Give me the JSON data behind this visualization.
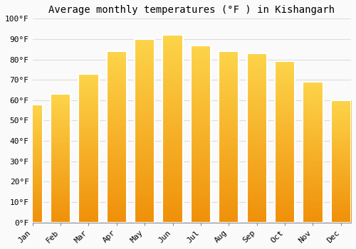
{
  "title": "Average monthly temperatures (°F ) in Kishangarh",
  "months": [
    "Jan",
    "Feb",
    "Mar",
    "Apr",
    "May",
    "Jun",
    "Jul",
    "Aug",
    "Sep",
    "Oct",
    "Nov",
    "Dec"
  ],
  "values": [
    58,
    63,
    73,
    84,
    90,
    92,
    87,
    84,
    83,
    79,
    69,
    60
  ],
  "bar_color_top": "#FDD44A",
  "bar_color_bottom": "#F0900A",
  "bar_edge_color": "#FFFFFF",
  "background_color": "#FAFAFA",
  "grid_color": "#DDDDDD",
  "ylim": [
    0,
    100
  ],
  "yticks": [
    0,
    10,
    20,
    30,
    40,
    50,
    60,
    70,
    80,
    90,
    100
  ],
  "ytick_labels": [
    "0°F",
    "10°F",
    "20°F",
    "30°F",
    "40°F",
    "50°F",
    "60°F",
    "70°F",
    "80°F",
    "90°F",
    "100°F"
  ],
  "title_fontsize": 10,
  "tick_fontsize": 8,
  "font_family": "monospace"
}
